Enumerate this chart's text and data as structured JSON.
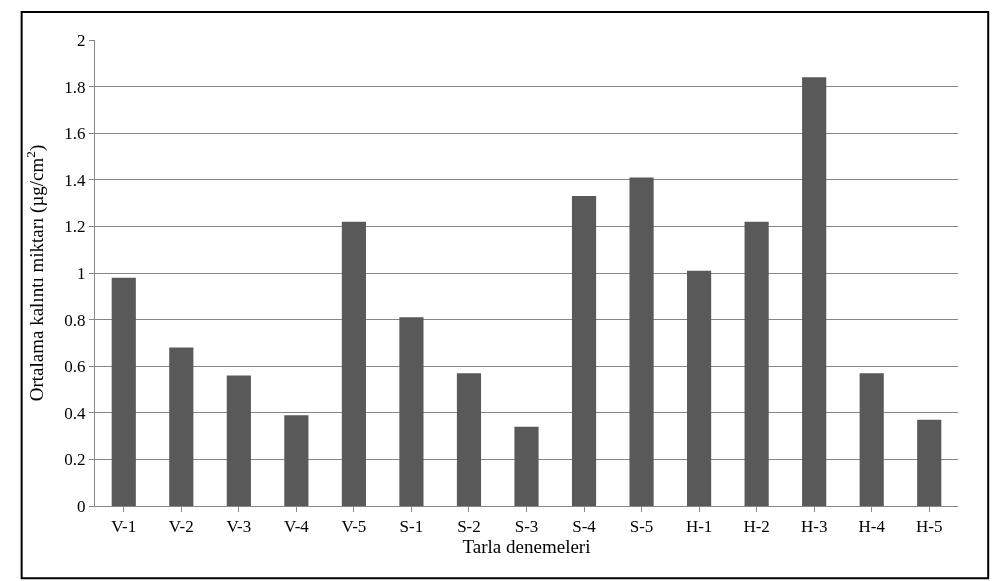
{
  "chart_data": {
    "type": "bar",
    "xlabel": "Tarla denemeleri",
    "ylabel": "Ortalama kalıntı miktarı (µg/cm$^{2}$)",
    "categories": [
      "V-1",
      "V-2",
      "V-3",
      "V-4",
      "V-5",
      "S-1",
      "S-2",
      "S-3",
      "S-4",
      "S-5",
      "H-1",
      "H-2",
      "H-3",
      "H-4",
      "H-5"
    ],
    "values": [
      0.98,
      0.68,
      0.56,
      0.39,
      1.22,
      0.81,
      0.57,
      0.34,
      1.33,
      1.41,
      1.01,
      1.22,
      1.84,
      0.57,
      0.37
    ],
    "color": "#595959",
    "ylim": [
      0,
      2
    ],
    "yticks": [
      0,
      0.2,
      0.4,
      0.6,
      0.8,
      1,
      1.2,
      1.4,
      1.6,
      1.8,
      2
    ],
    "grid": "y"
  }
}
